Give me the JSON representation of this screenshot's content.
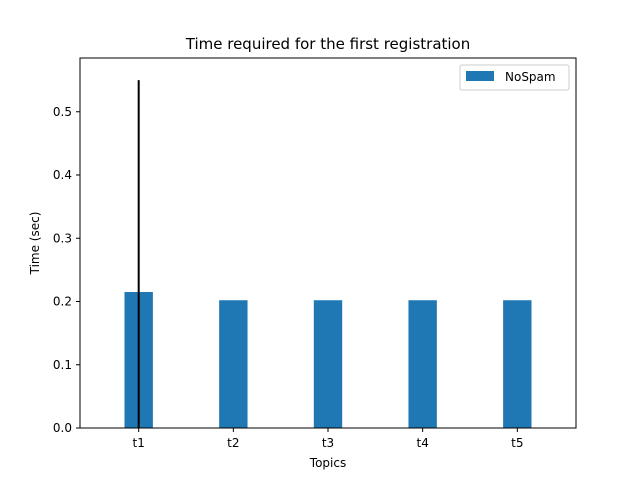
{
  "chart_data": {
    "type": "bar",
    "title": "Time required for the first registration",
    "xlabel": "Topics",
    "ylabel": "Time (sec)",
    "categories": [
      "t1",
      "t2",
      "t3",
      "t4",
      "t5"
    ],
    "series": [
      {
        "name": "NoSpam",
        "values": [
          0.215,
          0.202,
          0.202,
          0.202,
          0.202
        ],
        "error_upper": [
          0.55,
          0.202,
          0.202,
          0.202,
          0.202
        ],
        "error_lower": [
          0.0,
          0.202,
          0.202,
          0.202,
          0.202
        ],
        "color": "#1f77b4"
      }
    ],
    "ylim": [
      0,
      0.585
    ],
    "yticks": [
      0.0,
      0.1,
      0.2,
      0.3,
      0.4,
      0.5
    ],
    "ytick_labels": [
      "0.0",
      "0.1",
      "0.2",
      "0.3",
      "0.4",
      "0.5"
    ],
    "grid": false,
    "legend_position": "top-right",
    "error_bar_color": "#000000"
  }
}
